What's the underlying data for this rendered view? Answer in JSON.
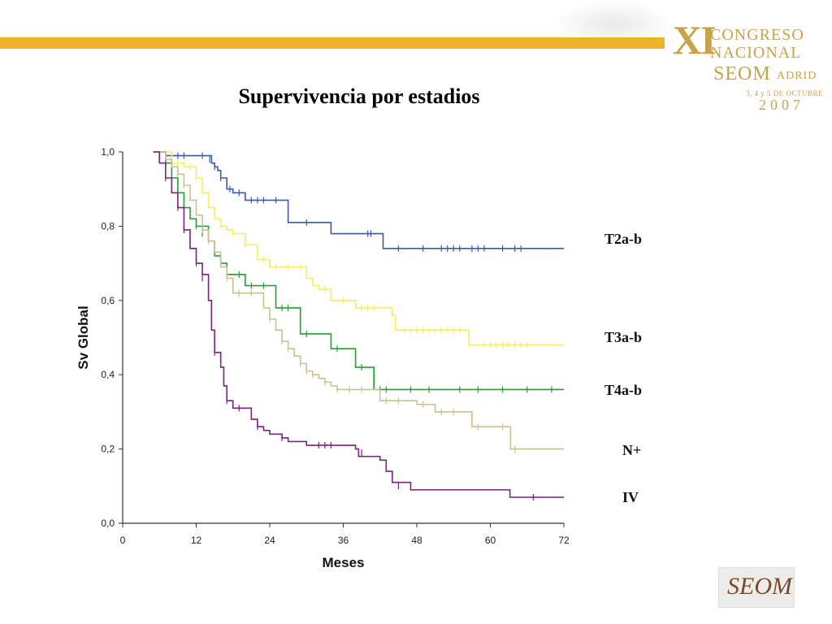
{
  "header": {
    "banner_color": "#f0b12a",
    "logo": {
      "roman": "XI",
      "line1": "CONGRESO",
      "line2": "NACIONAL",
      "org": "SEOM",
      "city": "ADRID",
      "dates": "3, 4 y 5 DE OCTUBRE",
      "year": "2007"
    }
  },
  "slide": {
    "title": "Supervivencia por estadios"
  },
  "footer_logo": {
    "text": "SEOM"
  },
  "chart_data": {
    "type": "line",
    "subtype": "kaplan-meier step",
    "title": "Supervivencia por estadios",
    "xlabel": "Meses",
    "ylabel": "Sv Global",
    "xlim": [
      0,
      72
    ],
    "ylim": [
      0,
      1
    ],
    "xticks": [
      "0",
      "12",
      "24",
      "36",
      "48",
      "60",
      "72"
    ],
    "yticks": [
      "0,0",
      "0,2",
      "0,4",
      "0,6",
      "0,8",
      "1,0"
    ],
    "grid": false,
    "series": [
      {
        "name": "T2a-b",
        "color": "#3b5aa8",
        "points": [
          [
            5,
            1.0
          ],
          [
            7,
            0.99
          ],
          [
            14,
            0.99
          ],
          [
            14.5,
            0.97
          ],
          [
            15,
            0.96
          ],
          [
            15.5,
            0.95
          ],
          [
            16,
            0.93
          ],
          [
            17,
            0.9
          ],
          [
            18,
            0.89
          ],
          [
            20,
            0.87
          ],
          [
            26,
            0.87
          ],
          [
            27,
            0.81
          ],
          [
            33,
            0.81
          ],
          [
            34,
            0.78
          ],
          [
            42,
            0.78
          ],
          [
            42.5,
            0.74
          ],
          [
            72,
            0.74
          ]
        ],
        "censored": [
          [
            8,
            0.99
          ],
          [
            9,
            0.99
          ],
          [
            10,
            0.99
          ],
          [
            13,
            0.99
          ],
          [
            14.2,
            0.98
          ],
          [
            15,
            0.96
          ],
          [
            16,
            0.93
          ],
          [
            17.5,
            0.9
          ],
          [
            19,
            0.89
          ],
          [
            21,
            0.87
          ],
          [
            22,
            0.87
          ],
          [
            23,
            0.87
          ],
          [
            25,
            0.87
          ],
          [
            30,
            0.81
          ],
          [
            40,
            0.78
          ],
          [
            40.5,
            0.78
          ],
          [
            45,
            0.74
          ],
          [
            49,
            0.74
          ],
          [
            52,
            0.74
          ],
          [
            53,
            0.74
          ],
          [
            54,
            0.74
          ],
          [
            55,
            0.74
          ],
          [
            57,
            0.74
          ],
          [
            58,
            0.74
          ],
          [
            59,
            0.74
          ],
          [
            62,
            0.74
          ],
          [
            64,
            0.74
          ],
          [
            65,
            0.74
          ]
        ],
        "label": "T2a-b"
      },
      {
        "name": "T3a-b",
        "color": "#f2f060",
        "points": [
          [
            5,
            1.0
          ],
          [
            8,
            0.97
          ],
          [
            10,
            0.96
          ],
          [
            12,
            0.93
          ],
          [
            13,
            0.89
          ],
          [
            14,
            0.85
          ],
          [
            15,
            0.82
          ],
          [
            16,
            0.8
          ],
          [
            17,
            0.79
          ],
          [
            18,
            0.78
          ],
          [
            20,
            0.75
          ],
          [
            22,
            0.71
          ],
          [
            24,
            0.69
          ],
          [
            28,
            0.69
          ],
          [
            30,
            0.66
          ],
          [
            31,
            0.64
          ],
          [
            32,
            0.63
          ],
          [
            34,
            0.6
          ],
          [
            37,
            0.6
          ],
          [
            38,
            0.58
          ],
          [
            41,
            0.58
          ],
          [
            44,
            0.56
          ],
          [
            44.5,
            0.52
          ],
          [
            56,
            0.52
          ],
          [
            56.5,
            0.48
          ],
          [
            72,
            0.48
          ]
        ],
        "censored": [
          [
            9,
            0.97
          ],
          [
            11,
            0.96
          ],
          [
            12,
            0.93
          ],
          [
            16,
            0.8
          ],
          [
            18,
            0.78
          ],
          [
            20,
            0.75
          ],
          [
            23,
            0.71
          ],
          [
            25,
            0.69
          ],
          [
            27,
            0.69
          ],
          [
            29,
            0.69
          ],
          [
            33,
            0.63
          ],
          [
            36,
            0.6
          ],
          [
            39,
            0.58
          ],
          [
            40,
            0.58
          ],
          [
            41,
            0.58
          ],
          [
            46,
            0.52
          ],
          [
            47,
            0.52
          ],
          [
            48,
            0.52
          ],
          [
            49,
            0.52
          ],
          [
            50,
            0.52
          ],
          [
            51,
            0.52
          ],
          [
            52,
            0.52
          ],
          [
            53,
            0.52
          ],
          [
            54,
            0.52
          ],
          [
            55,
            0.52
          ],
          [
            59,
            0.48
          ],
          [
            60,
            0.48
          ],
          [
            61,
            0.48
          ],
          [
            62,
            0.48
          ],
          [
            63,
            0.48
          ],
          [
            64,
            0.48
          ],
          [
            65,
            0.48
          ],
          [
            66,
            0.48
          ]
        ],
        "label": "T3a-b"
      },
      {
        "name": "T4a-b",
        "color": "#22a033",
        "points": [
          [
            5,
            1.0
          ],
          [
            7,
            0.97
          ],
          [
            8,
            0.93
          ],
          [
            9,
            0.89
          ],
          [
            10,
            0.85
          ],
          [
            11,
            0.82
          ],
          [
            12,
            0.8
          ],
          [
            14,
            0.76
          ],
          [
            15,
            0.72
          ],
          [
            16,
            0.7
          ],
          [
            17,
            0.67
          ],
          [
            20,
            0.64
          ],
          [
            24,
            0.64
          ],
          [
            25,
            0.58
          ],
          [
            28,
            0.58
          ],
          [
            29,
            0.51
          ],
          [
            33,
            0.51
          ],
          [
            34,
            0.47
          ],
          [
            37,
            0.47
          ],
          [
            38,
            0.42
          ],
          [
            40,
            0.42
          ],
          [
            41,
            0.36
          ],
          [
            72,
            0.36
          ]
        ],
        "censored": [
          [
            9,
            0.89
          ],
          [
            12,
            0.8
          ],
          [
            13,
            0.78
          ],
          [
            16,
            0.7
          ],
          [
            19,
            0.67
          ],
          [
            21,
            0.64
          ],
          [
            23,
            0.64
          ],
          [
            26,
            0.58
          ],
          [
            27,
            0.58
          ],
          [
            30,
            0.51
          ],
          [
            35,
            0.47
          ],
          [
            39,
            0.42
          ],
          [
            42,
            0.36
          ],
          [
            43,
            0.36
          ],
          [
            47,
            0.36
          ],
          [
            50,
            0.36
          ],
          [
            55,
            0.36
          ],
          [
            58,
            0.36
          ],
          [
            62,
            0.36
          ],
          [
            66,
            0.36
          ],
          [
            70,
            0.36
          ]
        ],
        "label": "T4a-b"
      },
      {
        "name": "N+",
        "color": "#cdc08e",
        "points": [
          [
            5,
            1.0
          ],
          [
            7,
            0.98
          ],
          [
            8,
            0.96
          ],
          [
            9,
            0.94
          ],
          [
            10,
            0.91
          ],
          [
            11,
            0.87
          ],
          [
            12,
            0.83
          ],
          [
            13,
            0.79
          ],
          [
            14,
            0.76
          ],
          [
            15,
            0.73
          ],
          [
            16,
            0.69
          ],
          [
            17,
            0.66
          ],
          [
            18,
            0.62
          ],
          [
            22,
            0.62
          ],
          [
            23,
            0.58
          ],
          [
            24,
            0.55
          ],
          [
            25,
            0.52
          ],
          [
            26,
            0.49
          ],
          [
            27,
            0.47
          ],
          [
            28,
            0.45
          ],
          [
            29,
            0.43
          ],
          [
            30,
            0.41
          ],
          [
            31,
            0.4
          ],
          [
            32,
            0.39
          ],
          [
            33,
            0.38
          ],
          [
            34,
            0.37
          ],
          [
            35,
            0.36
          ],
          [
            41,
            0.36
          ],
          [
            42,
            0.33
          ],
          [
            47,
            0.33
          ],
          [
            48,
            0.32
          ],
          [
            50,
            0.32
          ],
          [
            51,
            0.3
          ],
          [
            56,
            0.3
          ],
          [
            57,
            0.26
          ],
          [
            63,
            0.26
          ],
          [
            63.3,
            0.2
          ],
          [
            72,
            0.2
          ]
        ],
        "censored": [
          [
            6,
            0.99
          ],
          [
            9,
            0.94
          ],
          [
            10,
            0.91
          ],
          [
            13,
            0.79
          ],
          [
            14,
            0.76
          ],
          [
            17,
            0.66
          ],
          [
            19,
            0.62
          ],
          [
            21,
            0.62
          ],
          [
            24,
            0.55
          ],
          [
            26,
            0.49
          ],
          [
            27,
            0.47
          ],
          [
            29,
            0.43
          ],
          [
            30,
            0.41
          ],
          [
            31,
            0.4
          ],
          [
            33,
            0.38
          ],
          [
            35,
            0.36
          ],
          [
            37,
            0.36
          ],
          [
            39,
            0.36
          ],
          [
            43,
            0.33
          ],
          [
            45,
            0.33
          ],
          [
            49,
            0.32
          ],
          [
            52,
            0.3
          ],
          [
            54,
            0.3
          ],
          [
            58,
            0.26
          ],
          [
            62,
            0.26
          ],
          [
            64,
            0.2
          ]
        ],
        "label": "N+"
      },
      {
        "name": "IV",
        "color": "#7a2183",
        "points": [
          [
            5,
            1.0
          ],
          [
            6,
            0.97
          ],
          [
            7,
            0.93
          ],
          [
            8,
            0.89
          ],
          [
            9,
            0.85
          ],
          [
            10,
            0.79
          ],
          [
            11,
            0.74
          ],
          [
            12,
            0.7
          ],
          [
            13,
            0.67
          ],
          [
            14,
            0.6
          ],
          [
            14.5,
            0.52
          ],
          [
            15,
            0.46
          ],
          [
            16,
            0.42
          ],
          [
            16.5,
            0.37
          ],
          [
            17,
            0.33
          ],
          [
            18,
            0.31
          ],
          [
            20,
            0.31
          ],
          [
            21,
            0.28
          ],
          [
            22,
            0.26
          ],
          [
            23,
            0.25
          ],
          [
            24,
            0.24
          ],
          [
            26,
            0.23
          ],
          [
            27,
            0.22
          ],
          [
            30,
            0.21
          ],
          [
            34,
            0.21
          ],
          [
            38,
            0.2
          ],
          [
            38.5,
            0.18
          ],
          [
            42,
            0.17
          ],
          [
            43,
            0.14
          ],
          [
            44,
            0.11
          ],
          [
            47,
            0.09
          ],
          [
            63,
            0.09
          ],
          [
            63.2,
            0.07
          ],
          [
            72,
            0.07
          ]
        ],
        "censored": [
          [
            7,
            0.93
          ],
          [
            9,
            0.85
          ],
          [
            10,
            0.79
          ],
          [
            12,
            0.7
          ],
          [
            13,
            0.66
          ],
          [
            15,
            0.46
          ],
          [
            17,
            0.33
          ],
          [
            19,
            0.31
          ],
          [
            22,
            0.26
          ],
          [
            26,
            0.23
          ],
          [
            32,
            0.21
          ],
          [
            33,
            0.21
          ],
          [
            34,
            0.21
          ],
          [
            39,
            0.19
          ],
          [
            45,
            0.1
          ],
          [
            67,
            0.07
          ]
        ],
        "label": "IV"
      }
    ]
  }
}
